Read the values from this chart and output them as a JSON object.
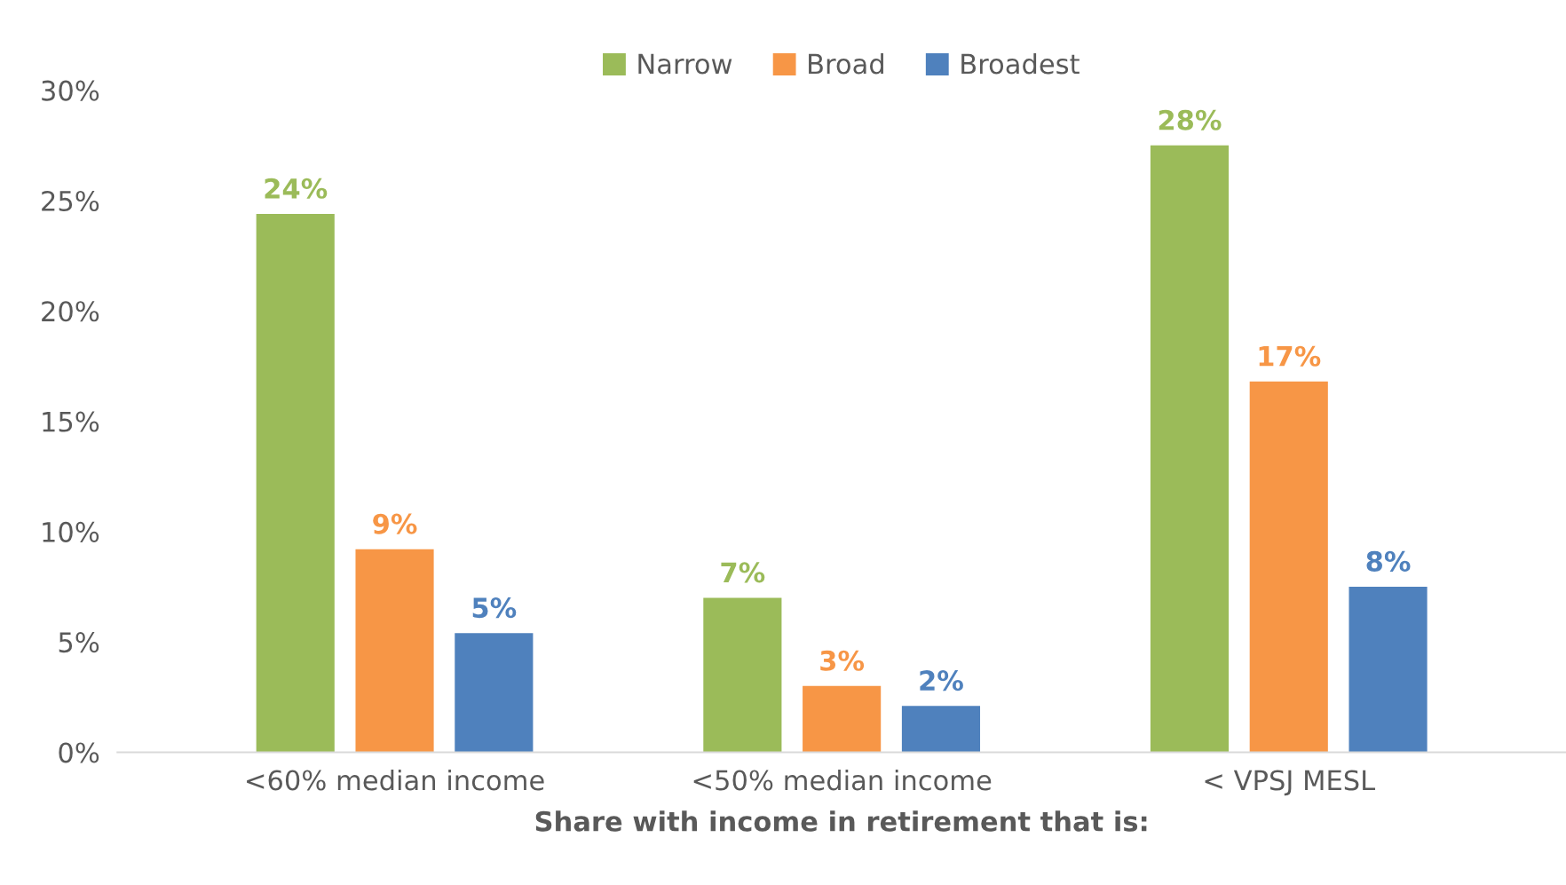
{
  "chart_data": {
    "type": "bar",
    "categories": [
      "<60% median income",
      "<50% median income",
      "< VPSJ MESL"
    ],
    "xlabel": "Share with income in retirement that is:",
    "series": [
      {
        "name": "Narrow",
        "color": "#9bbb59",
        "values": [
          24.4,
          7.0,
          27.5
        ],
        "value_labels": [
          "24%",
          "7%",
          "28%"
        ]
      },
      {
        "name": "Broad",
        "color": "#f79646",
        "values": [
          9.2,
          3.0,
          16.8
        ],
        "value_labels": [
          "9%",
          "3%",
          "17%"
        ]
      },
      {
        "name": "Broadest",
        "color": "#4f81bd",
        "values": [
          5.4,
          2.1,
          7.5
        ],
        "value_labels": [
          "5%",
          "2%",
          "8%"
        ]
      }
    ],
    "ylim": [
      0,
      30
    ],
    "yticks": [
      {
        "value": 0,
        "label": "0%"
      },
      {
        "value": 5,
        "label": "5%"
      },
      {
        "value": 10,
        "label": "10%"
      },
      {
        "value": 15,
        "label": "15%"
      },
      {
        "value": 20,
        "label": "20%"
      },
      {
        "value": 25,
        "label": "25%"
      },
      {
        "value": 30,
        "label": "30%"
      }
    ],
    "grid": false,
    "legend": "top"
  }
}
